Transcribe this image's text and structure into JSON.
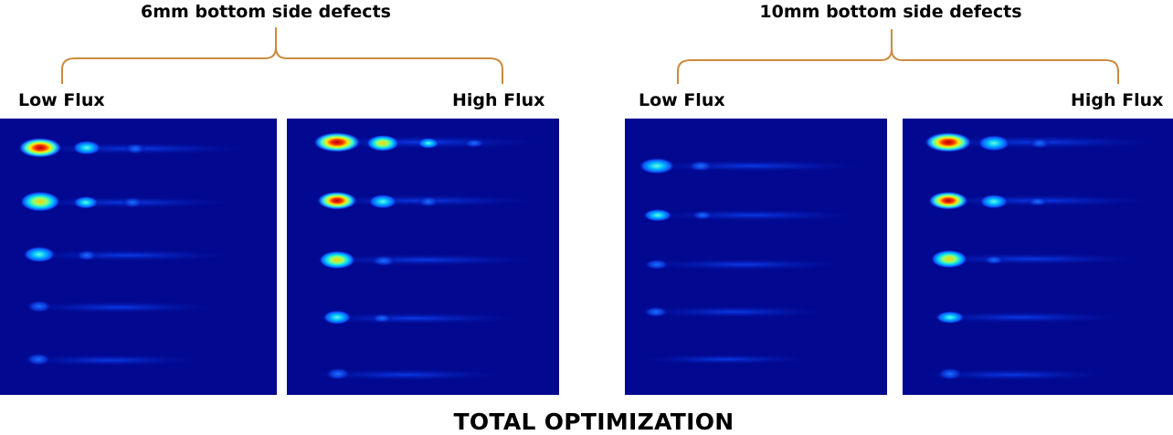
{
  "groups": [
    {
      "title": "6mm bottom side defects",
      "low_label": "Low Flux",
      "high_label": "High Flux"
    },
    {
      "title": "10mm bottom side defects",
      "low_label": "Low Flux",
      "high_label": "High Flux"
    }
  ],
  "main_title": "TOTAL OPTIMIZATION",
  "colors": {
    "background": "#02088f",
    "brace": "#cc8a3e",
    "hot": "#e00000",
    "warm": "#ffee00",
    "bright": "#00e0ff"
  }
}
